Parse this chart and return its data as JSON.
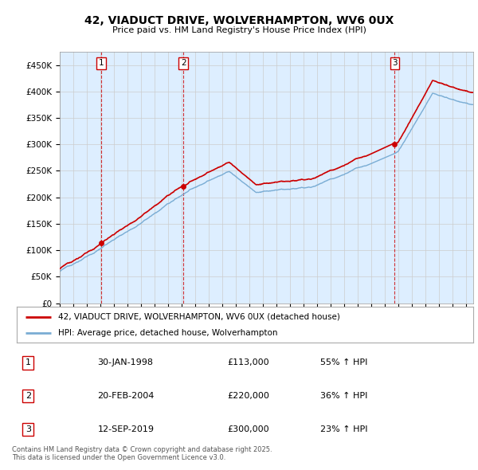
{
  "title": "42, VIADUCT DRIVE, WOLVERHAMPTON, WV6 0UX",
  "subtitle": "Price paid vs. HM Land Registry's House Price Index (HPI)",
  "ylabel_ticks": [
    "£0",
    "£50K",
    "£100K",
    "£150K",
    "£200K",
    "£250K",
    "£300K",
    "£350K",
    "£400K",
    "£450K"
  ],
  "ytick_values": [
    0,
    50000,
    100000,
    150000,
    200000,
    250000,
    300000,
    350000,
    400000,
    450000
  ],
  "ylim": [
    0,
    475000
  ],
  "xlim_start": 1995.0,
  "xlim_end": 2025.5,
  "sales": [
    {
      "label": "1",
      "date": 1998.08,
      "price": 113000
    },
    {
      "label": "2",
      "date": 2004.13,
      "price": 220000
    },
    {
      "label": "3",
      "date": 2019.71,
      "price": 300000
    }
  ],
  "legend_line1": "42, VIADUCT DRIVE, WOLVERHAMPTON, WV6 0UX (detached house)",
  "legend_line2": "HPI: Average price, detached house, Wolverhampton",
  "table_entries": [
    {
      "num": "1",
      "date": "30-JAN-1998",
      "price": "£113,000",
      "change": "55% ↑ HPI"
    },
    {
      "num": "2",
      "date": "20-FEB-2004",
      "price": "£220,000",
      "change": "36% ↑ HPI"
    },
    {
      "num": "3",
      "date": "12-SEP-2019",
      "price": "£300,000",
      "change": "23% ↑ HPI"
    }
  ],
  "footnote": "Contains HM Land Registry data © Crown copyright and database right 2025.\nThis data is licensed under the Open Government Licence v3.0.",
  "hpi_color": "#7aadd4",
  "price_color": "#cc0000",
  "grid_color": "#cccccc",
  "chart_bg": "#ddeeff",
  "fig_bg": "#ffffff"
}
